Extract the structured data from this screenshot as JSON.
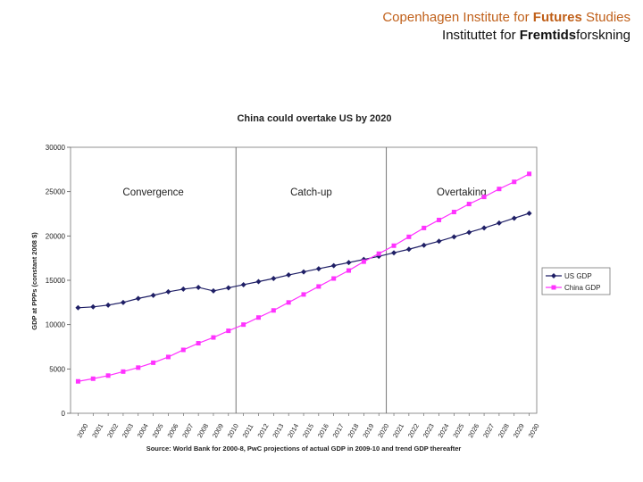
{
  "header": {
    "line1_pre": "Copenhagen Institute for ",
    "line1_bold": "Futures",
    "line1_post": " Studies",
    "line2_pre": "Instituttet for ",
    "line2_bold": "Fremtids",
    "line2_post": "forskning"
  },
  "colors": {
    "header_line1": "#c0601a",
    "us": "#1f1f66",
    "china": "#ff33ff",
    "axis": "#333333"
  },
  "chart_data": {
    "type": "line",
    "title": "China could overtake US by 2020",
    "ylabel": "GDP at PPPs (constant 2008 $)",
    "xlabel": "",
    "source": "Source: World Bank for 2000-8, PwC projections of actual GDP in 2009-10 and trend GDP thereafter",
    "x": [
      "2000",
      "2001",
      "2002",
      "2003",
      "2004",
      "2005",
      "2006",
      "2007",
      "2008",
      "2009",
      "2010",
      "2011",
      "2012",
      "2013",
      "2014",
      "2015",
      "2016",
      "2017",
      "2018",
      "2019",
      "2020",
      "2021",
      "2022",
      "2023",
      "2024",
      "2025",
      "2026",
      "2027",
      "2028",
      "2029",
      "2030"
    ],
    "ylim": [
      0,
      30000
    ],
    "yticks": [
      "0",
      "5000",
      "10000",
      "15000",
      "20000",
      "25000",
      "30000"
    ],
    "phases": [
      {
        "label": "Convergence"
      },
      {
        "label": "Catch-up"
      },
      {
        "label": "Overtaking"
      }
    ],
    "phase_boundaries_x": [
      2010.5,
      2020.5
    ],
    "legend_position": "right",
    "series": [
      {
        "name": "US GDP",
        "marker": "diamond",
        "values": [
          11900,
          12000,
          12200,
          12500,
          12950,
          13300,
          13700,
          14000,
          14200,
          13800,
          14150,
          14500,
          14850,
          15200,
          15600,
          15950,
          16300,
          16650,
          17000,
          17350,
          17700,
          18100,
          18500,
          18950,
          19400,
          19900,
          20400,
          20900,
          21450,
          22000,
          22550
        ]
      },
      {
        "name": "China GDP",
        "marker": "square",
        "values": [
          3600,
          3900,
          4250,
          4700,
          5150,
          5700,
          6350,
          7150,
          7900,
          8550,
          9300,
          10000,
          10800,
          11600,
          12500,
          13400,
          14300,
          15200,
          16100,
          17100,
          18000,
          18900,
          19900,
          20900,
          21800,
          22700,
          23600,
          24400,
          25300,
          26100,
          27000
        ]
      }
    ]
  }
}
